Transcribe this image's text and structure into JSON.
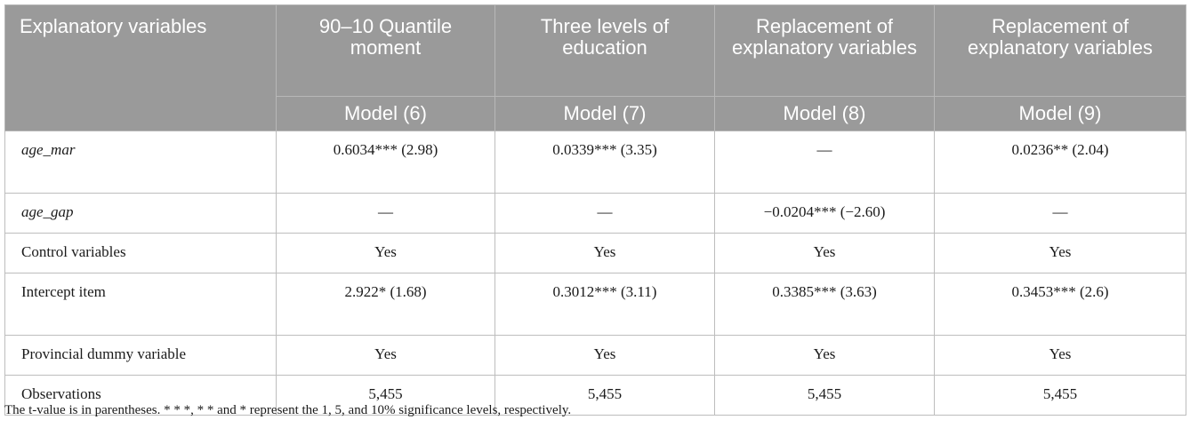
{
  "header": {
    "columns": [
      "Explanatory variables",
      "90–10 Quantile moment",
      "Three levels of education",
      "Replacement of explanatory variables",
      "Replacement of explanatory variables"
    ],
    "models": [
      "Model (6)",
      "Model (7)",
      "Model (8)",
      "Model (9)"
    ]
  },
  "rows": [
    {
      "label": "age_mar",
      "values": [
        "0.6034*** (2.98)",
        "0.0339*** (3.35)",
        "—",
        "0.0236** (2.04)"
      ]
    },
    {
      "label": "age_gap",
      "values": [
        "—",
        "—",
        "−0.0204*** (−2.60)",
        "—"
      ]
    },
    {
      "label": "Control variables",
      "values": [
        "Yes",
        "Yes",
        "Yes",
        "Yes"
      ]
    },
    {
      "label": "Intercept item",
      "values": [
        "2.922* (1.68)",
        "0.3012*** (3.11)",
        "0.3385*** (3.63)",
        "0.3453*** (2.6)"
      ]
    },
    {
      "label": "Provincial dummy variable",
      "values": [
        "Yes",
        "Yes",
        "Yes",
        "Yes"
      ]
    },
    {
      "label": "Observations",
      "values": [
        "5,455",
        "5,455",
        "5,455",
        "5,455"
      ]
    }
  ],
  "footnote": "The t-value is in parentheses. * * *, * * and * represent the 1, 5, and 10% significance levels, respectively."
}
